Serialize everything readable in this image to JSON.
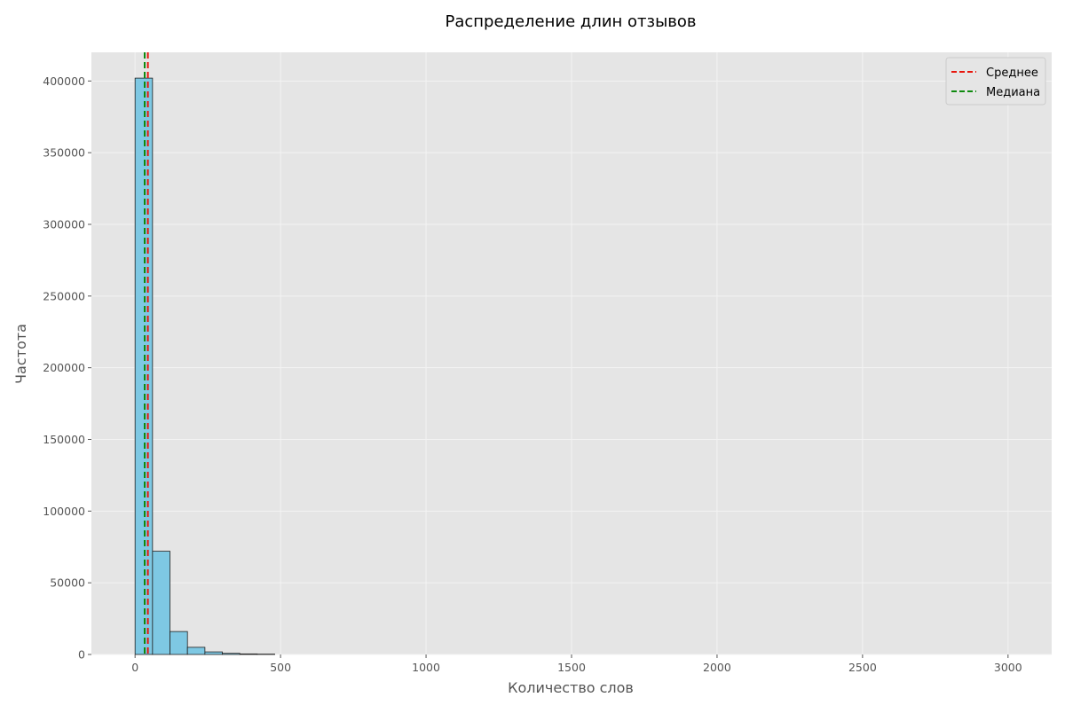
{
  "chart_data": {
    "type": "bar",
    "title": "Распределение длин отзывов",
    "xlabel": "Количество слов",
    "ylabel": "Частота",
    "xlim": [
      -150,
      3150
    ],
    "ylim": [
      0,
      420000
    ],
    "xticks": [
      0,
      500,
      1000,
      1500,
      2000,
      2500,
      3000
    ],
    "yticks": [
      0,
      50000,
      100000,
      150000,
      200000,
      250000,
      300000,
      350000,
      400000
    ],
    "bin_width": 60,
    "bins": [
      {
        "start": 0,
        "end": 60,
        "value": 402000
      },
      {
        "start": 60,
        "end": 120,
        "value": 72000
      },
      {
        "start": 120,
        "end": 180,
        "value": 16000
      },
      {
        "start": 180,
        "end": 240,
        "value": 5000
      },
      {
        "start": 240,
        "end": 300,
        "value": 1800
      },
      {
        "start": 300,
        "end": 360,
        "value": 800
      },
      {
        "start": 360,
        "end": 420,
        "value": 400
      },
      {
        "start": 420,
        "end": 480,
        "value": 250
      }
    ],
    "reference_lines": [
      {
        "name": "Среднее",
        "x": 44,
        "color": "#e8160c",
        "style": "dashed"
      },
      {
        "name": "Медиана",
        "x": 33,
        "color": "#0f8a0f",
        "style": "dashed"
      }
    ],
    "bar_color": "#7ec8e3",
    "bar_edge_color": "#1f1f1f",
    "background_color": "#e5e5e5",
    "grid": true,
    "legend": {
      "position": "top-right",
      "entries": [
        {
          "label": "Среднее",
          "color": "#e8160c"
        },
        {
          "label": "Медиана",
          "color": "#0f8a0f"
        }
      ]
    }
  }
}
